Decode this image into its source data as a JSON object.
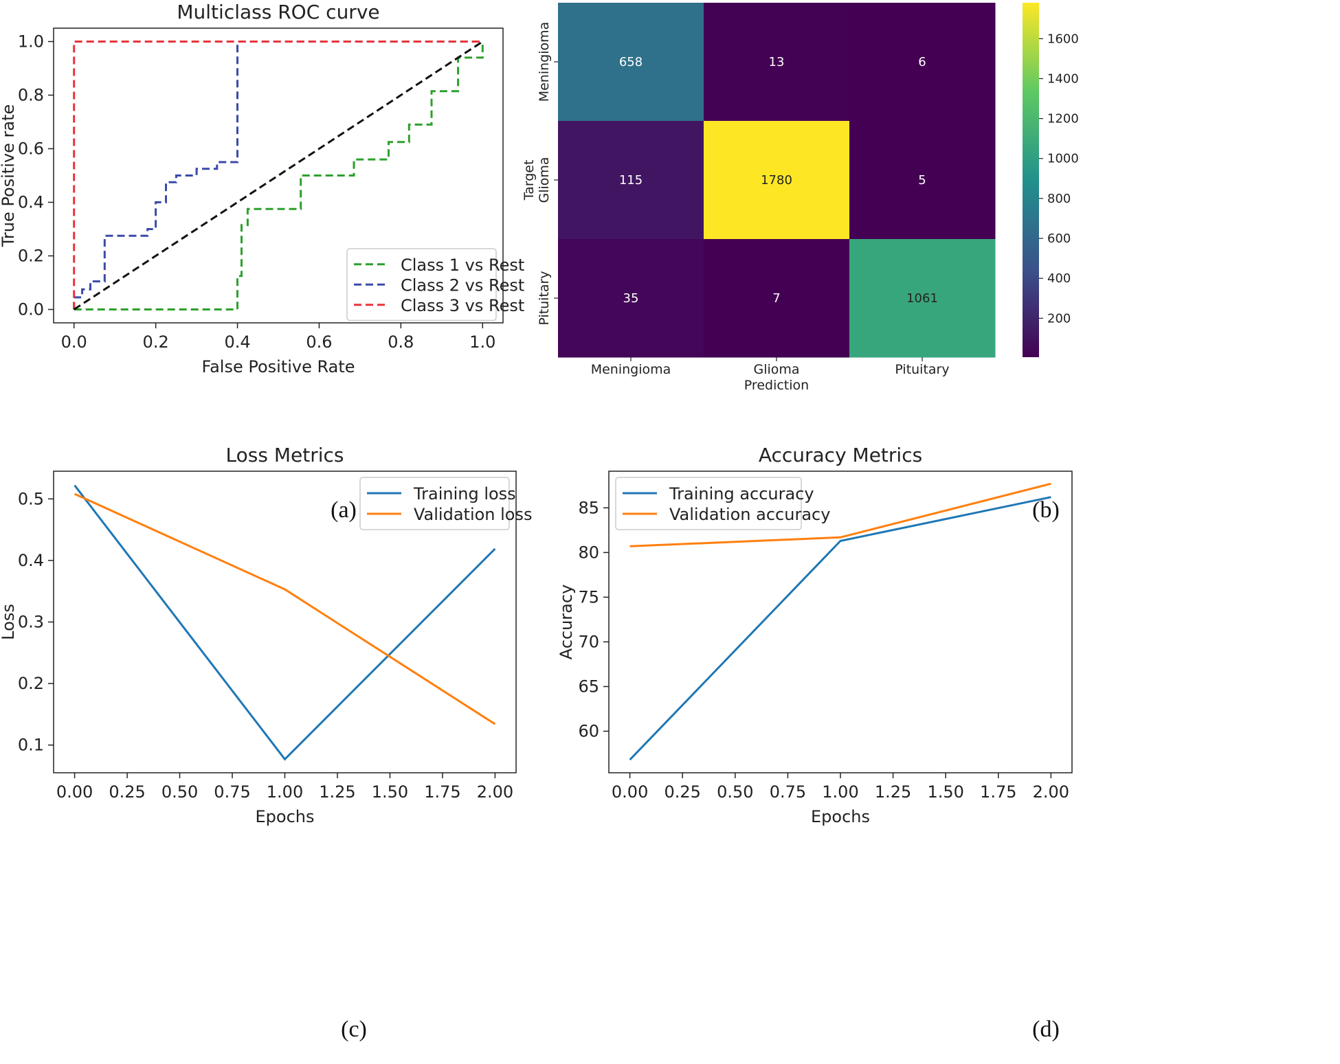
{
  "colors": {
    "class1": "#2ca02c",
    "class2": "#3a4aa8",
    "class3": "#e8333a",
    "diagonal": "#111111",
    "training": "#1f77b4",
    "validation": "#ff7f0e"
  },
  "captions": {
    "a": "(a)",
    "b": "(b)",
    "c": "(c)",
    "d": "(d)"
  },
  "chart_data": [
    {
      "id": "roc",
      "type": "line",
      "title": "Multiclass ROC curve",
      "xlabel": "False Positive Rate",
      "ylabel": "True Positive rate",
      "xlim": [
        -0.05,
        1.05
      ],
      "ylim": [
        -0.05,
        1.05
      ],
      "xticks": [
        0.0,
        0.2,
        0.4,
        0.6,
        0.8,
        1.0
      ],
      "xtick_labels": [
        "0.0",
        "0.2",
        "0.4",
        "0.6",
        "0.8",
        "1.0"
      ],
      "yticks": [
        0.0,
        0.2,
        0.4,
        0.6,
        0.8,
        1.0
      ],
      "ytick_labels": [
        "0.0",
        "0.2",
        "0.4",
        "0.6",
        "0.8",
        "1.0"
      ],
      "legend_position": "lower-right",
      "series": [
        {
          "name": "Class 1 vs Rest",
          "color_key": "class1",
          "dash": true,
          "x": [
            0,
            0.4,
            0.4,
            0.41,
            0.41,
            0.425,
            0.425,
            0.44,
            0.44,
            0.555,
            0.555,
            0.685,
            0.685,
            0.77,
            0.77,
            0.82,
            0.82,
            0.875,
            0.875,
            0.94,
            0.94,
            1.0,
            1.0
          ],
          "y": [
            0,
            0,
            0.125,
            0.125,
            0.315,
            0.315,
            0.375,
            0.375,
            0.375,
            0.375,
            0.5,
            0.5,
            0.56,
            0.56,
            0.625,
            0.625,
            0.69,
            0.69,
            0.815,
            0.815,
            0.94,
            0.94,
            1.0
          ]
        },
        {
          "name": "Class 2 vs Rest",
          "color_key": "class2",
          "dash": true,
          "x": [
            0,
            0,
            0.02,
            0.02,
            0.04,
            0.04,
            0.075,
            0.075,
            0.18,
            0.18,
            0.2,
            0.2,
            0.225,
            0.225,
            0.25,
            0.25,
            0.3,
            0.3,
            0.35,
            0.35,
            0.4,
            0.4,
            1.0
          ],
          "y": [
            0,
            0.045,
            0.045,
            0.075,
            0.075,
            0.105,
            0.105,
            0.275,
            0.275,
            0.3,
            0.3,
            0.4,
            0.4,
            0.475,
            0.475,
            0.5,
            0.5,
            0.525,
            0.525,
            0.55,
            0.55,
            1.0,
            1.0
          ]
        },
        {
          "name": "Class 3 vs Rest",
          "color_key": "class3",
          "dash": true,
          "x": [
            0,
            0,
            1.0
          ],
          "y": [
            0,
            1.0,
            1.0
          ]
        },
        {
          "name": "chance",
          "color_key": "diagonal",
          "dash": true,
          "in_legend": false,
          "x": [
            0,
            1
          ],
          "y": [
            0,
            1
          ]
        }
      ]
    },
    {
      "id": "confusion",
      "type": "heatmap",
      "title": "",
      "xlabel": "Prediction",
      "ylabel": "Target",
      "categories": [
        "Meningioma",
        "Glioma",
        "Pituitary"
      ],
      "values": [
        [
          658,
          13,
          6
        ],
        [
          115,
          1780,
          5
        ],
        [
          35,
          7,
          1061
        ]
      ],
      "colorbar_range": [
        5,
        1780
      ],
      "colorbar_ticks": [
        200,
        400,
        600,
        800,
        1000,
        1200,
        1400,
        1600
      ],
      "colormap": "viridis"
    },
    {
      "id": "loss",
      "type": "line",
      "title": "Loss Metrics",
      "xlabel": "Epochs",
      "ylabel": "Loss",
      "x": [
        0,
        1,
        2
      ],
      "xlim": [
        -0.1,
        2.1
      ],
      "ylim": [
        0.055,
        0.545
      ],
      "xticks": [
        0,
        0.25,
        0.5,
        0.75,
        1.0,
        1.25,
        1.5,
        1.75,
        2.0
      ],
      "xtick_labels": [
        "0.00",
        "0.25",
        "0.50",
        "0.75",
        "1.00",
        "1.25",
        "1.50",
        "1.75",
        "2.00"
      ],
      "yticks": [
        0.1,
        0.2,
        0.3,
        0.4,
        0.5
      ],
      "ytick_labels": [
        "0.1",
        "0.2",
        "0.3",
        "0.4",
        "0.5"
      ],
      "legend_position": "upper-right",
      "series": [
        {
          "name": "Training loss",
          "color_key": "training",
          "values": [
            0.522,
            0.077,
            0.419
          ]
        },
        {
          "name": "Validation loss",
          "color_key": "validation",
          "values": [
            0.508,
            0.353,
            0.134
          ]
        }
      ]
    },
    {
      "id": "accuracy",
      "type": "line",
      "title": "Accuracy Metrics",
      "xlabel": "Epochs",
      "ylabel": "Accuracy",
      "x": [
        0,
        1,
        2
      ],
      "xlim": [
        -0.1,
        2.1
      ],
      "ylim": [
        55.35,
        89.1
      ],
      "xticks": [
        0,
        0.25,
        0.5,
        0.75,
        1.0,
        1.25,
        1.5,
        1.75,
        2.0
      ],
      "xtick_labels": [
        "0.00",
        "0.25",
        "0.50",
        "0.75",
        "1.00",
        "1.25",
        "1.50",
        "1.75",
        "2.00"
      ],
      "yticks": [
        60,
        65,
        70,
        75,
        80,
        85
      ],
      "ytick_labels": [
        "60",
        "65",
        "70",
        "75",
        "80",
        "85"
      ],
      "legend_position": "upper-left",
      "series": [
        {
          "name": "Training accuracy",
          "color_key": "training",
          "values": [
            56.8,
            81.3,
            86.2
          ]
        },
        {
          "name": "Validation accuracy",
          "color_key": "validation",
          "values": [
            80.7,
            81.7,
            87.7
          ]
        }
      ]
    }
  ]
}
